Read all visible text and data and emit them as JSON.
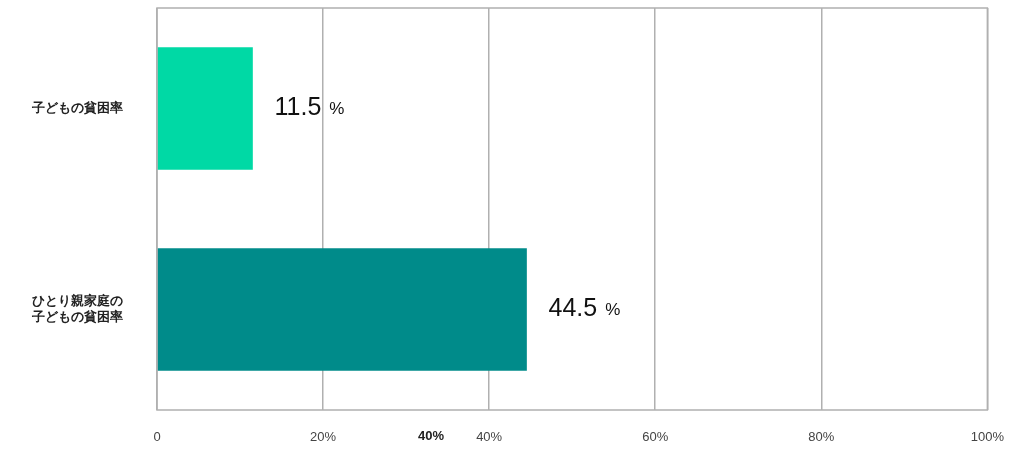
{
  "chart_data": {
    "type": "bar",
    "orientation": "horizontal",
    "categories": [
      "子どもの貧困率",
      "ひとり親家庭の子どもの貧困率"
    ],
    "values": [
      11.5,
      44.5
    ],
    "colors": [
      "#00d9a5",
      "#008b8a"
    ],
    "value_labels": [
      "11.5 %",
      "44.5 %"
    ],
    "xlim": [
      0,
      100
    ],
    "xticks": [
      0,
      {
        "value": 20,
        "label": "20%"
      },
      {
        "value": 40,
        "label": "40%"
      },
      {
        "value": 60,
        "label": "60%"
      },
      {
        "value": 80,
        "label": "80%"
      },
      {
        "value": 100,
        "label": "100%"
      }
    ],
    "grid": "x",
    "annotations": [
      "40%"
    ]
  }
}
